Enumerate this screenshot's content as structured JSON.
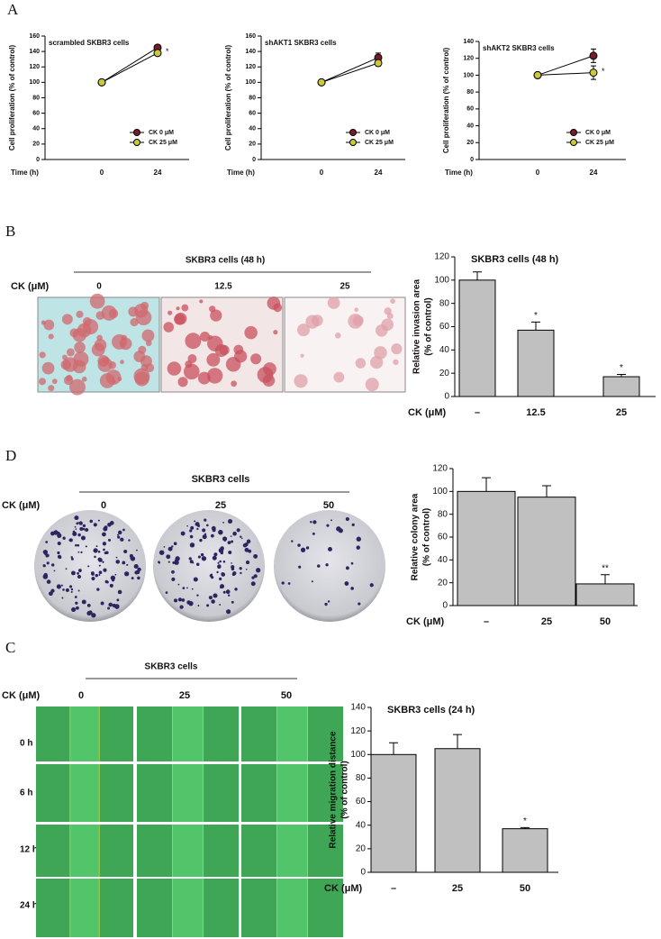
{
  "chart_data": [
    {
      "type": "line",
      "title": "scrambled SKBR3 cells",
      "ylabel": "Cell proliferation (% of control)",
      "xlabel": "Time (h)",
      "categories": [
        "0",
        "24"
      ],
      "series": [
        {
          "name": "CK 0 μM",
          "color": "#7a1a2a",
          "values": [
            100,
            145
          ],
          "errors": [
            0,
            3
          ]
        },
        {
          "name": "CK 25 μM",
          "color": "#c9c93a",
          "values": [
            100,
            138
          ],
          "errors": [
            0,
            3
          ]
        }
      ],
      "annotations": [
        null,
        "*"
      ],
      "ylim": [
        0,
        160
      ],
      "yticks": [
        0,
        20,
        40,
        60,
        80,
        100,
        120,
        140,
        160
      ],
      "legend": "lower right"
    },
    {
      "type": "line",
      "title": "shAKT1 SKBR3 cells",
      "ylabel": "Cell proliferation (% of control)",
      "xlabel": "Time (h)",
      "categories": [
        "0",
        "24"
      ],
      "series": [
        {
          "name": "CK 0 μM",
          "color": "#7a1a2a",
          "values": [
            100,
            132
          ],
          "errors": [
            0,
            6
          ]
        },
        {
          "name": "CK 25 μM",
          "color": "#c9c93a",
          "values": [
            100,
            125
          ],
          "errors": [
            0,
            4
          ]
        }
      ],
      "ylim": [
        0,
        160
      ],
      "yticks": [
        0,
        20,
        40,
        60,
        80,
        100,
        120,
        140,
        160
      ],
      "legend": "lower right"
    },
    {
      "type": "line",
      "title": "shAKT2 SKBR3 cells",
      "ylabel": "Cell proliferation (% of control)",
      "xlabel": "Time (h)",
      "categories": [
        "0",
        "24"
      ],
      "series": [
        {
          "name": "CK 0 μM",
          "color": "#7a1a2a",
          "values": [
            100,
            123
          ],
          "errors": [
            0,
            8
          ]
        },
        {
          "name": "CK 25 μM",
          "color": "#c9c93a",
          "values": [
            100,
            103
          ],
          "errors": [
            0,
            8
          ]
        }
      ],
      "annotations": [
        null,
        "*"
      ],
      "ylim": [
        0,
        140
      ],
      "yticks": [
        0,
        20,
        40,
        60,
        80,
        100,
        120,
        140
      ],
      "legend": "lower right"
    },
    {
      "type": "bar",
      "title": "SKBR3 cells (48 h)",
      "ylabel": [
        "Relative invasion area",
        "(% of control)"
      ],
      "xlabel": "CK (μM)",
      "categories": [
        "–",
        "12.5",
        "25"
      ],
      "values": [
        100,
        57,
        17
      ],
      "errors": [
        7,
        7,
        2
      ],
      "color": "#c0c0c0",
      "annotations": [
        null,
        "*",
        "*"
      ],
      "ylim": [
        0,
        120
      ],
      "yticks": [
        0,
        20,
        40,
        60,
        80,
        100,
        120
      ]
    },
    {
      "type": "bar",
      "ylabel": [
        "Relative colony area",
        "(% of control)"
      ],
      "xlabel": "CK (μM)",
      "categories": [
        "–",
        "25",
        "50"
      ],
      "values": [
        100,
        95,
        19
      ],
      "errors": [
        12,
        10,
        8
      ],
      "color": "#c0c0c0",
      "annotations": [
        null,
        null,
        "**"
      ],
      "ylim": [
        0,
        120
      ],
      "yticks": [
        0,
        20,
        40,
        60,
        80,
        100,
        120
      ]
    },
    {
      "type": "bar",
      "title": "SKBR3 cells (24 h)",
      "ylabel": [
        "Relative migration distance",
        "(% of control)"
      ],
      "xlabel": "CK (μM)",
      "categories": [
        "–",
        "25",
        "50"
      ],
      "values": [
        100,
        105,
        37
      ],
      "errors": [
        10,
        12,
        1
      ],
      "color": "#c0c0c0",
      "annotations": [
        null,
        null,
        "*"
      ],
      "ylim": [
        0,
        140
      ],
      "yticks": [
        0,
        20,
        40,
        60,
        80,
        100,
        120,
        140
      ]
    }
  ],
  "panels": {
    "A": {
      "letter": "A"
    },
    "B": {
      "letter": "B",
      "header": "SKBR3 cells (48 h)",
      "dose_label": "CK (μM)",
      "doses": [
        "0",
        "12.5",
        "25"
      ]
    },
    "D": {
      "letter": "D",
      "header": "SKBR3 cells",
      "dose_label": "CK (μM)",
      "doses": [
        "0",
        "25",
        "50"
      ]
    },
    "C": {
      "letter": "C",
      "header": "SKBR3 cells",
      "dose_label": "CK (μM)",
      "doses": [
        "0",
        "25",
        "50"
      ],
      "times": [
        "0 h",
        "6 h",
        "12 h",
        "24 h"
      ]
    }
  }
}
